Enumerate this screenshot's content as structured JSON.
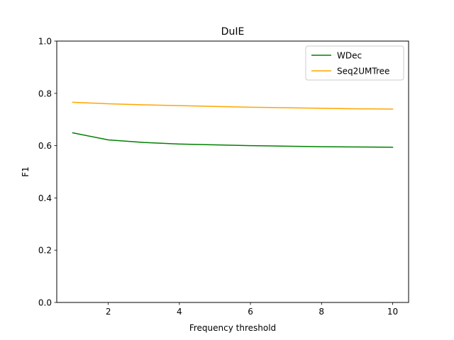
{
  "chart_data": {
    "type": "line",
    "title": "DuIE",
    "xlabel": "Frequency threshold",
    "ylabel": "F1",
    "xlim": [
      0.55,
      10.45
    ],
    "ylim": [
      0.0,
      1.0
    ],
    "xticks": [
      2,
      4,
      6,
      8,
      10
    ],
    "yticks": [
      0.0,
      0.2,
      0.4,
      0.6,
      0.8,
      1.0
    ],
    "ytick_labels": [
      "0.0",
      "0.2",
      "0.4",
      "0.6",
      "0.8",
      "1.0"
    ],
    "grid": false,
    "legend_position": "upper right",
    "x": [
      1,
      2,
      3,
      4,
      5,
      6,
      7,
      8,
      9,
      10
    ],
    "series": [
      {
        "name": "WDec",
        "color": "#008000",
        "values": [
          0.649,
          0.622,
          0.612,
          0.606,
          0.603,
          0.6,
          0.598,
          0.596,
          0.595,
          0.594
        ]
      },
      {
        "name": "Seq2UMTree",
        "color": "#ffa500",
        "values": [
          0.766,
          0.76,
          0.756,
          0.753,
          0.75,
          0.747,
          0.745,
          0.743,
          0.741,
          0.74
        ]
      }
    ]
  }
}
